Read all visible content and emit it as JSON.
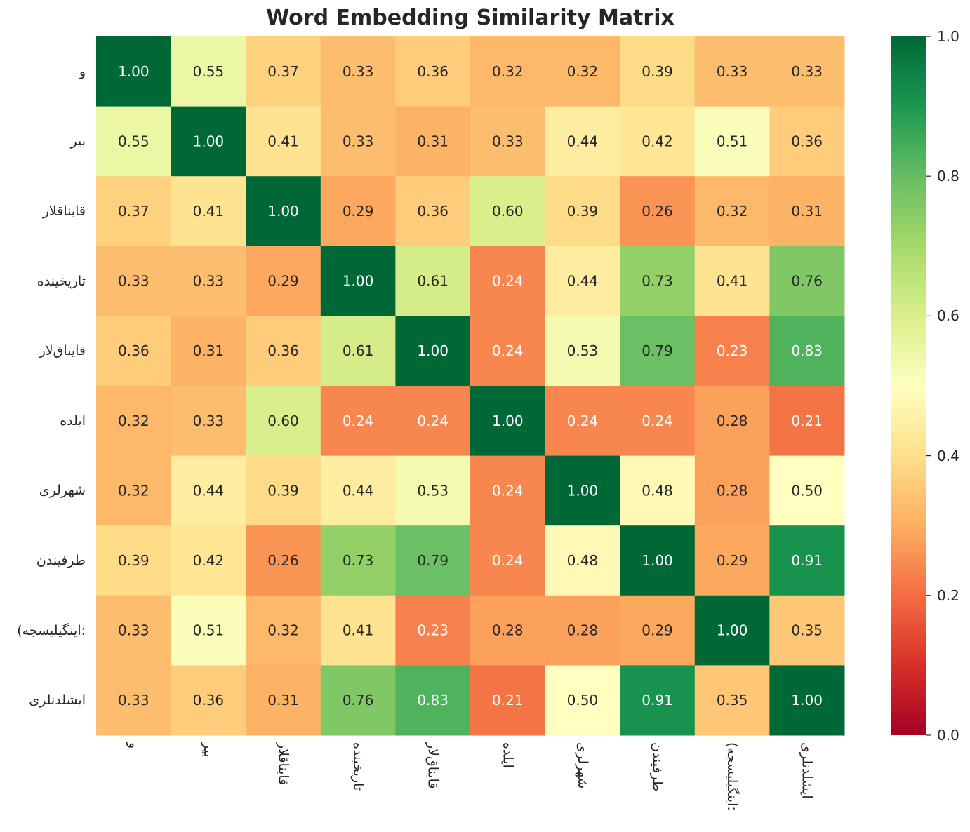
{
  "chart_data": {
    "type": "heatmap",
    "title": "Word Embedding Similarity Matrix",
    "colormap": "RdYlGn",
    "vmin": 0.0,
    "vmax": 1.0,
    "labels": [
      "و",
      "بیر",
      "قایناقلار",
      "تاریخینده",
      "قایناق‌لار",
      "ایلده",
      "شهرلری",
      "طرفیندن",
      "(اینگیلیسجه:",
      "ایشلدنلری"
    ],
    "values": [
      [
        1.0,
        0.55,
        0.37,
        0.33,
        0.36,
        0.32,
        0.32,
        0.39,
        0.33,
        0.33
      ],
      [
        0.55,
        1.0,
        0.41,
        0.33,
        0.31,
        0.33,
        0.44,
        0.42,
        0.51,
        0.36
      ],
      [
        0.37,
        0.41,
        1.0,
        0.29,
        0.36,
        0.6,
        0.39,
        0.26,
        0.32,
        0.31
      ],
      [
        0.33,
        0.33,
        0.29,
        1.0,
        0.61,
        0.24,
        0.44,
        0.73,
        0.41,
        0.76
      ],
      [
        0.36,
        0.31,
        0.36,
        0.61,
        1.0,
        0.24,
        0.53,
        0.79,
        0.23,
        0.83
      ],
      [
        0.32,
        0.33,
        0.6,
        0.24,
        0.24,
        1.0,
        0.24,
        0.24,
        0.28,
        0.21
      ],
      [
        0.32,
        0.44,
        0.39,
        0.44,
        0.53,
        0.24,
        1.0,
        0.48,
        0.28,
        0.5
      ],
      [
        0.39,
        0.42,
        0.26,
        0.73,
        0.79,
        0.24,
        0.48,
        1.0,
        0.29,
        0.91
      ],
      [
        0.33,
        0.51,
        0.32,
        0.41,
        0.23,
        0.28,
        0.28,
        0.29,
        1.0,
        0.35
      ],
      [
        0.33,
        0.36,
        0.31,
        0.76,
        0.83,
        0.21,
        0.5,
        0.91,
        0.35,
        1.0
      ]
    ],
    "colorbar_ticks": [
      "0.0",
      "0.2",
      "0.4",
      "0.6",
      "0.8",
      "1.0"
    ],
    "annotation_format": "0.00"
  }
}
